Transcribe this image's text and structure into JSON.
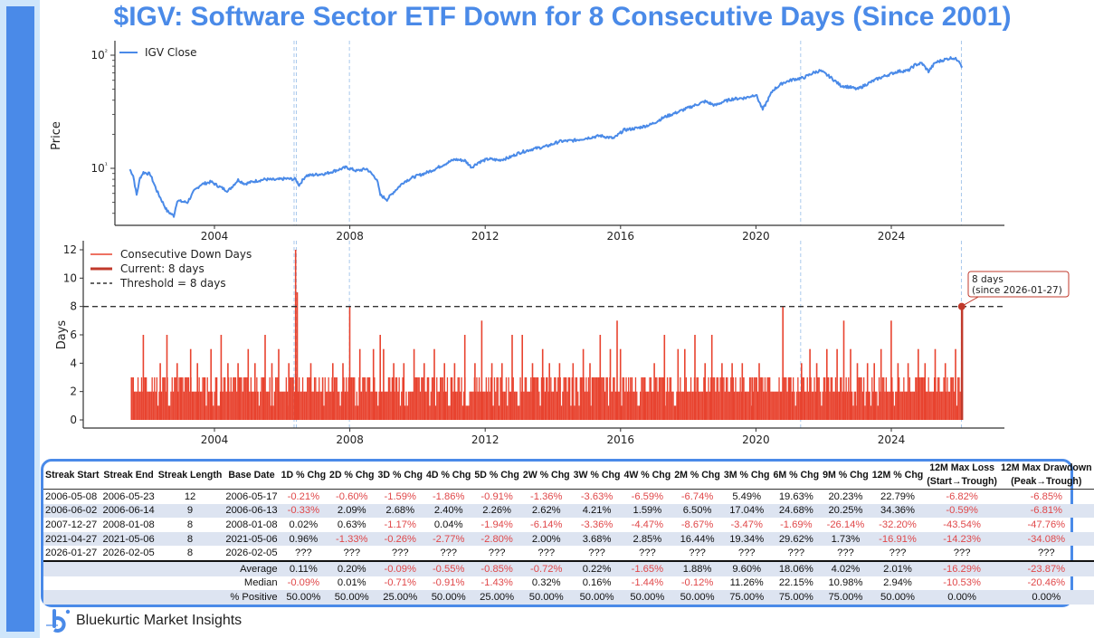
{
  "title": "$IGV: Software Sector ETF Down for 8 Consecutive Days (Since 2001)",
  "brand": {
    "name": "Bluekurtic Market Insights",
    "icon": "bluekurtic-logo-icon"
  },
  "colors": {
    "accent": "#4a8ae8",
    "price_line": "#4a8ae8",
    "bars": "#e8432f",
    "current": "#c0392b",
    "negative_text": "#e0484a",
    "event_line": "#a9c9ec",
    "threshold": "#333333"
  },
  "chart_data": [
    {
      "type": "line",
      "title": "",
      "xlabel": "",
      "ylabel": "Price",
      "yscale": "log",
      "ylim": [
        3.5,
        130
      ],
      "xlim": [
        2000.3,
        2027.3
      ],
      "x_ticks": [
        "2004",
        "2008",
        "2012",
        "2016",
        "2020",
        "2024"
      ],
      "y_ticks": [
        "10¹",
        "10²"
      ],
      "legend": {
        "placement": "top-left",
        "entries": [
          "IGV Close"
        ]
      },
      "event_lines": [
        "2006-05-08",
        "2006-06-02",
        "2007-12-27",
        "2021-04-27",
        "2026-01-27"
      ],
      "series": [
        {
          "name": "IGV Close",
          "x": [
            2001.5,
            2001.6,
            2001.7,
            2001.8,
            2001.9,
            2002.1,
            2002.3,
            2002.5,
            2002.6,
            2002.8,
            2002.9,
            2003.0,
            2003.2,
            2003.4,
            2003.6,
            2003.9,
            2004.1,
            2004.4,
            2004.7,
            2004.9,
            2005.2,
            2005.5,
            2005.8,
            2006.1,
            2006.4,
            2006.5,
            2006.7,
            2007.0,
            2007.3,
            2007.6,
            2007.9,
            2008.2,
            2008.5,
            2008.8,
            2008.9,
            2009.1,
            2009.3,
            2009.6,
            2009.9,
            2010.2,
            2010.5,
            2010.8,
            2011.1,
            2011.4,
            2011.6,
            2011.8,
            2012.1,
            2012.4,
            2012.7,
            2013.0,
            2013.4,
            2013.8,
            2014.2,
            2014.6,
            2015.0,
            2015.4,
            2015.8,
            2016.1,
            2016.5,
            2016.9,
            2017.3,
            2017.7,
            2018.1,
            2018.5,
            2018.8,
            2019.0,
            2019.3,
            2019.7,
            2020.0,
            2020.2,
            2020.5,
            2020.8,
            2021.1,
            2021.4,
            2021.7,
            2021.9,
            2022.2,
            2022.5,
            2022.8,
            2023.0,
            2023.3,
            2023.6,
            2023.9,
            2024.2,
            2024.5,
            2024.7,
            2024.9,
            2025.1,
            2025.3,
            2025.6,
            2025.8,
            2026.0,
            2026.1
          ],
          "values": [
            9.8,
            8.6,
            5.8,
            8.2,
            9.2,
            8.9,
            6.3,
            4.8,
            4.2,
            3.8,
            5.2,
            5.1,
            5.0,
            6.3,
            7.2,
            7.6,
            7.0,
            6.3,
            7.9,
            7.3,
            7.7,
            8.0,
            7.9,
            8.1,
            8.0,
            7.1,
            8.6,
            8.8,
            9.0,
            9.6,
            10.2,
            9.5,
            9.9,
            8.0,
            5.8,
            5.3,
            6.2,
            7.6,
            8.4,
            9.0,
            9.8,
            10.9,
            12.0,
            11.7,
            10.2,
            11.3,
            12.1,
            11.8,
            12.4,
            13.7,
            14.8,
            15.6,
            17.3,
            17.6,
            18.5,
            19.4,
            18.4,
            21.8,
            22.7,
            24.4,
            28.4,
            31.5,
            35.2,
            39.0,
            36.0,
            38.5,
            41.0,
            42.0,
            45.0,
            33.0,
            49.0,
            57.0,
            61.0,
            63.0,
            70.0,
            73.0,
            64.0,
            54.0,
            52.0,
            50.0,
            56.0,
            62.0,
            67.0,
            72.0,
            73.0,
            82.0,
            85.0,
            72.0,
            86.0,
            92.0,
            95.0,
            90.0,
            78.0
          ]
        }
      ]
    },
    {
      "type": "bar",
      "title": "",
      "xlabel": "",
      "ylabel": "Days",
      "ylim": [
        -0.6,
        12.6
      ],
      "xlim": [
        2000.3,
        2027.3
      ],
      "x_ticks": [
        "2004",
        "2008",
        "2012",
        "2016",
        "2020",
        "2024"
      ],
      "y_ticks": [
        "0",
        "2",
        "4",
        "6",
        "8",
        "10",
        "12"
      ],
      "grid": false,
      "legend": {
        "placement": "top-left",
        "entries": [
          "Consecutive Down Days",
          "Current: 8 days",
          "Threshold = 8 days"
        ]
      },
      "threshold": 8,
      "current": {
        "value": 8,
        "date": "2026-01-27",
        "annotation_line1": "8 days",
        "annotation_line2": "(since 2026-01-27)"
      },
      "event_lines": [
        "2006-05-08",
        "2006-06-02",
        "2007-12-27",
        "2021-04-27",
        "2026-01-27"
      ],
      "series": [
        {
          "name": "Consecutive Down Days",
          "x": [
            2001.55,
            2001.9,
            2002.4,
            2002.6,
            2002.9,
            2003.3,
            2003.5,
            2003.9,
            2004.2,
            2004.4,
            2004.7,
            2005.0,
            2005.2,
            2005.5,
            2005.7,
            2005.9,
            2006.2,
            2006.4,
            2006.45,
            2006.85,
            2007.2,
            2007.5,
            2007.8,
            2008.0,
            2008.3,
            2008.7,
            2008.9,
            2009.0,
            2009.3,
            2009.6,
            2009.9,
            2010.2,
            2010.5,
            2010.8,
            2011.1,
            2011.4,
            2011.7,
            2011.9,
            2012.2,
            2012.5,
            2012.8,
            2013.1,
            2013.4,
            2013.7,
            2013.9,
            2014.2,
            2014.6,
            2014.9,
            2015.1,
            2015.4,
            2015.7,
            2015.9,
            2016.0,
            2016.3,
            2016.7,
            2017.0,
            2017.3,
            2017.7,
            2017.9,
            2018.2,
            2018.5,
            2018.7,
            2019.0,
            2019.3,
            2019.6,
            2019.9,
            2020.1,
            2020.4,
            2020.8,
            2021.0,
            2021.35,
            2021.6,
            2021.8,
            2022.1,
            2022.4,
            2022.6,
            2022.8,
            2023.0,
            2023.3,
            2023.5,
            2023.7,
            2024.0,
            2024.2,
            2024.5,
            2024.8,
            2025.0,
            2025.3,
            2025.6,
            2025.9,
            2026.08
          ],
          "values": [
            3,
            6,
            4,
            6,
            4,
            5,
            4,
            5,
            6,
            4,
            4,
            5,
            4,
            6,
            4,
            5,
            4,
            12,
            9,
            4,
            3,
            4,
            4,
            8,
            5,
            5,
            6,
            5,
            4,
            4,
            5,
            4,
            5,
            4,
            4,
            6,
            4,
            7,
            4,
            4,
            6,
            6,
            4,
            5,
            4,
            4,
            4,
            5,
            4,
            6,
            5,
            7,
            5,
            3,
            3,
            4,
            6,
            5,
            5,
            6,
            4,
            6,
            4,
            4,
            4,
            3,
            4,
            3,
            8,
            3,
            4,
            5,
            4,
            5,
            5,
            7,
            5,
            4,
            4,
            4,
            5,
            7,
            4,
            4,
            5,
            4,
            5,
            4,
            5,
            8
          ]
        }
      ]
    }
  ],
  "table": {
    "headers": [
      [
        "Streak Start"
      ],
      [
        "Streak End"
      ],
      [
        "Streak Length"
      ],
      [
        "Base Date"
      ],
      [
        "1D % Chg"
      ],
      [
        "2D % Chg"
      ],
      [
        "3D % Chg"
      ],
      [
        "4D % Chg"
      ],
      [
        "5D % Chg"
      ],
      [
        "2W % Chg"
      ],
      [
        "3W % Chg"
      ],
      [
        "4W % Chg"
      ],
      [
        "2M % Chg"
      ],
      [
        "3M % Chg"
      ],
      [
        "6M % Chg"
      ],
      [
        "9M % Chg"
      ],
      [
        "12M % Chg"
      ],
      [
        "12M Max Loss",
        "(Start→Trough)"
      ],
      [
        "12M Max Drawdown",
        "(Peak→Trough)"
      ]
    ],
    "rows": [
      [
        "2006-05-08",
        "2006-05-23",
        "12",
        "2006-05-17",
        "-0.21%",
        "-0.60%",
        "-1.59%",
        "-1.86%",
        "-0.91%",
        "-1.36%",
        "-3.63%",
        "-6.59%",
        "-6.74%",
        "5.49%",
        "19.63%",
        "20.23%",
        "22.79%",
        "-6.82%",
        "-6.85%"
      ],
      [
        "2006-06-02",
        "2006-06-14",
        "9",
        "2006-06-13",
        "-0.33%",
        "2.09%",
        "2.68%",
        "2.40%",
        "2.26%",
        "2.62%",
        "4.21%",
        "1.59%",
        "6.50%",
        "17.04%",
        "24.68%",
        "20.25%",
        "34.36%",
        "-0.59%",
        "-6.81%"
      ],
      [
        "2007-12-27",
        "2008-01-08",
        "8",
        "2008-01-08",
        "0.02%",
        "0.63%",
        "-1.17%",
        "0.04%",
        "-1.94%",
        "-6.14%",
        "-3.36%",
        "-4.47%",
        "-8.67%",
        "-3.47%",
        "-1.69%",
        "-26.14%",
        "-32.20%",
        "-43.54%",
        "-47.76%"
      ],
      [
        "2021-04-27",
        "2021-05-06",
        "8",
        "2021-05-06",
        "0.96%",
        "-1.33%",
        "-0.26%",
        "-2.77%",
        "-2.80%",
        "2.00%",
        "3.68%",
        "2.85%",
        "16.44%",
        "19.34%",
        "29.62%",
        "1.73%",
        "-16.91%",
        "-14.23%",
        "-34.08%"
      ],
      [
        "2026-01-27",
        "2026-02-05",
        "8",
        "2026-02-05",
        "???",
        "???",
        "???",
        "???",
        "???",
        "???",
        "???",
        "???",
        "???",
        "???",
        "???",
        "???",
        "???",
        "???",
        "???"
      ]
    ],
    "stats": [
      {
        "label": "Average",
        "values": [
          "0.11%",
          "0.20%",
          "-0.09%",
          "-0.55%",
          "-0.85%",
          "-0.72%",
          "0.22%",
          "-1.65%",
          "1.88%",
          "9.60%",
          "18.06%",
          "4.02%",
          "2.01%",
          "-16.29%",
          "-23.87%"
        ]
      },
      {
        "label": "Median",
        "values": [
          "-0.09%",
          "0.01%",
          "-0.71%",
          "-0.91%",
          "-1.43%",
          "0.32%",
          "0.16%",
          "-1.44%",
          "-0.12%",
          "11.26%",
          "22.15%",
          "10.98%",
          "2.94%",
          "-10.53%",
          "-20.46%"
        ]
      },
      {
        "label": "% Positive",
        "values": [
          "50.00%",
          "50.00%",
          "25.00%",
          "50.00%",
          "25.00%",
          "50.00%",
          "50.00%",
          "50.00%",
          "50.00%",
          "75.00%",
          "75.00%",
          "75.00%",
          "50.00%",
          "0.00%",
          "0.00%"
        ]
      }
    ]
  }
}
